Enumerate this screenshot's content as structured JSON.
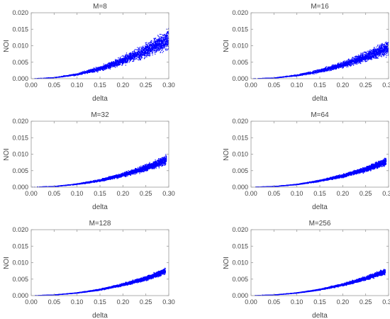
{
  "chart_data": [
    {
      "type": "scatter",
      "title": "M=8",
      "xlabel": "delta",
      "ylabel": "NOI",
      "xlim": [
        0,
        0.3
      ],
      "ylim": [
        0,
        0.02
      ],
      "xticks": [
        "0.00",
        "0.05",
        "0.10",
        "0.15",
        "0.20",
        "0.25",
        "0.30"
      ],
      "yticks": [
        "0.000",
        "0.005",
        "0.010",
        "0.015",
        "0.020"
      ],
      "grid": false,
      "point_color": "#0000ff",
      "x_range": [
        0,
        0.3
      ],
      "trend": [
        [
          0,
          0
        ],
        [
          0.05,
          0.0003
        ],
        [
          0.1,
          0.0013
        ],
        [
          0.15,
          0.003
        ],
        [
          0.2,
          0.0055
        ],
        [
          0.25,
          0.0085
        ],
        [
          0.3,
          0.012
        ]
      ],
      "spread_at_x_max": 0.008,
      "n_points": 2600,
      "seed": 11
    },
    {
      "type": "scatter",
      "title": "M=16",
      "xlabel": "delta",
      "ylabel": "NOI",
      "xlim": [
        0,
        0.3
      ],
      "ylim": [
        0,
        0.02
      ],
      "xticks": [
        "0.00",
        "0.05",
        "0.10",
        "0.15",
        "0.20",
        "0.25",
        "0.30"
      ],
      "yticks": [
        "0.000",
        "0.005",
        "0.010",
        "0.015",
        "0.020"
      ],
      "grid": false,
      "point_color": "#0000ff",
      "x_range": [
        0,
        0.3
      ],
      "trend": [
        [
          0,
          0
        ],
        [
          0.05,
          0.0002
        ],
        [
          0.1,
          0.001
        ],
        [
          0.15,
          0.0023
        ],
        [
          0.2,
          0.0042
        ],
        [
          0.25,
          0.0067
        ],
        [
          0.3,
          0.0093
        ]
      ],
      "spread_at_x_max": 0.0055,
      "n_points": 2600,
      "seed": 23
    },
    {
      "type": "scatter",
      "title": "M=32",
      "xlabel": "delta",
      "ylabel": "NOI",
      "xlim": [
        0,
        0.3
      ],
      "ylim": [
        0,
        0.02
      ],
      "xticks": [
        "0.00",
        "0.05",
        "0.10",
        "0.15",
        "0.20",
        "0.25",
        "0.30"
      ],
      "yticks": [
        "0.000",
        "0.005",
        "0.010",
        "0.015",
        "0.020"
      ],
      "grid": false,
      "point_color": "#0000ff",
      "x_range": [
        0,
        0.295
      ],
      "trend": [
        [
          0,
          0
        ],
        [
          0.05,
          0.0002
        ],
        [
          0.1,
          0.0009
        ],
        [
          0.15,
          0.002
        ],
        [
          0.2,
          0.0037
        ],
        [
          0.25,
          0.0058
        ],
        [
          0.295,
          0.0082
        ]
      ],
      "spread_at_x_max": 0.0038,
      "n_points": 2600,
      "seed": 37
    },
    {
      "type": "scatter",
      "title": "M=64",
      "xlabel": "delta",
      "ylabel": "NOI",
      "xlim": [
        0,
        0.3
      ],
      "ylim": [
        0,
        0.02
      ],
      "xticks": [
        "0.00",
        "0.05",
        "0.10",
        "0.15",
        "0.20",
        "0.25",
        "0.30"
      ],
      "yticks": [
        "0.000",
        "0.005",
        "0.010",
        "0.015",
        "0.020"
      ],
      "grid": false,
      "point_color": "#0000ff",
      "x_range": [
        0,
        0.295
      ],
      "trend": [
        [
          0,
          0
        ],
        [
          0.05,
          0.0002
        ],
        [
          0.1,
          0.0008
        ],
        [
          0.15,
          0.0019
        ],
        [
          0.2,
          0.0034
        ],
        [
          0.25,
          0.0054
        ],
        [
          0.295,
          0.0077
        ]
      ],
      "spread_at_x_max": 0.003,
      "n_points": 2600,
      "seed": 53
    },
    {
      "type": "scatter",
      "title": "M=128",
      "xlabel": "delta",
      "ylabel": "NOI",
      "xlim": [
        0,
        0.3
      ],
      "ylim": [
        0,
        0.02
      ],
      "xticks": [
        "0.00",
        "0.05",
        "0.10",
        "0.15",
        "0.20",
        "0.25",
        "0.30"
      ],
      "yticks": [
        "0.000",
        "0.005",
        "0.010",
        "0.015",
        "0.020"
      ],
      "grid": false,
      "point_color": "#0000ff",
      "x_range": [
        0,
        0.293
      ],
      "trend": [
        [
          0,
          0
        ],
        [
          0.05,
          0.0002
        ],
        [
          0.1,
          0.0008
        ],
        [
          0.15,
          0.0018
        ],
        [
          0.2,
          0.0033
        ],
        [
          0.25,
          0.0052
        ],
        [
          0.293,
          0.0074
        ]
      ],
      "spread_at_x_max": 0.0024,
      "n_points": 2600,
      "seed": 71
    },
    {
      "type": "scatter",
      "title": "M=256",
      "xlabel": "delta",
      "ylabel": "NOI",
      "xlim": [
        0,
        0.3
      ],
      "ylim": [
        0,
        0.02
      ],
      "xticks": [
        "0.00",
        "0.05",
        "0.10",
        "0.15",
        "0.20",
        "0.25",
        "0.30"
      ],
      "yticks": [
        "0.000",
        "0.005",
        "0.010",
        "0.015",
        "0.020"
      ],
      "grid": false,
      "point_color": "#0000ff",
      "x_range": [
        0,
        0.293
      ],
      "trend": [
        [
          0,
          0
        ],
        [
          0.05,
          0.0002
        ],
        [
          0.1,
          0.0008
        ],
        [
          0.15,
          0.0018
        ],
        [
          0.2,
          0.0033
        ],
        [
          0.25,
          0.0052
        ],
        [
          0.293,
          0.0073
        ]
      ],
      "spread_at_x_max": 0.0022,
      "n_points": 2600,
      "seed": 89
    }
  ]
}
